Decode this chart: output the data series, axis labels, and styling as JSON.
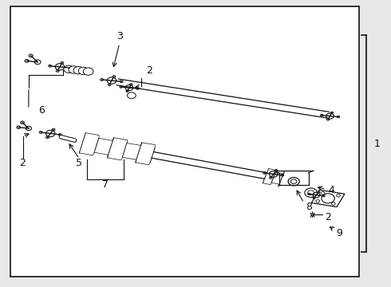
{
  "bg_color": "#e8e8e8",
  "box_color": "#ffffff",
  "line_color": "#111111",
  "fig_width": 4.9,
  "fig_height": 3.6,
  "dpi": 100
}
